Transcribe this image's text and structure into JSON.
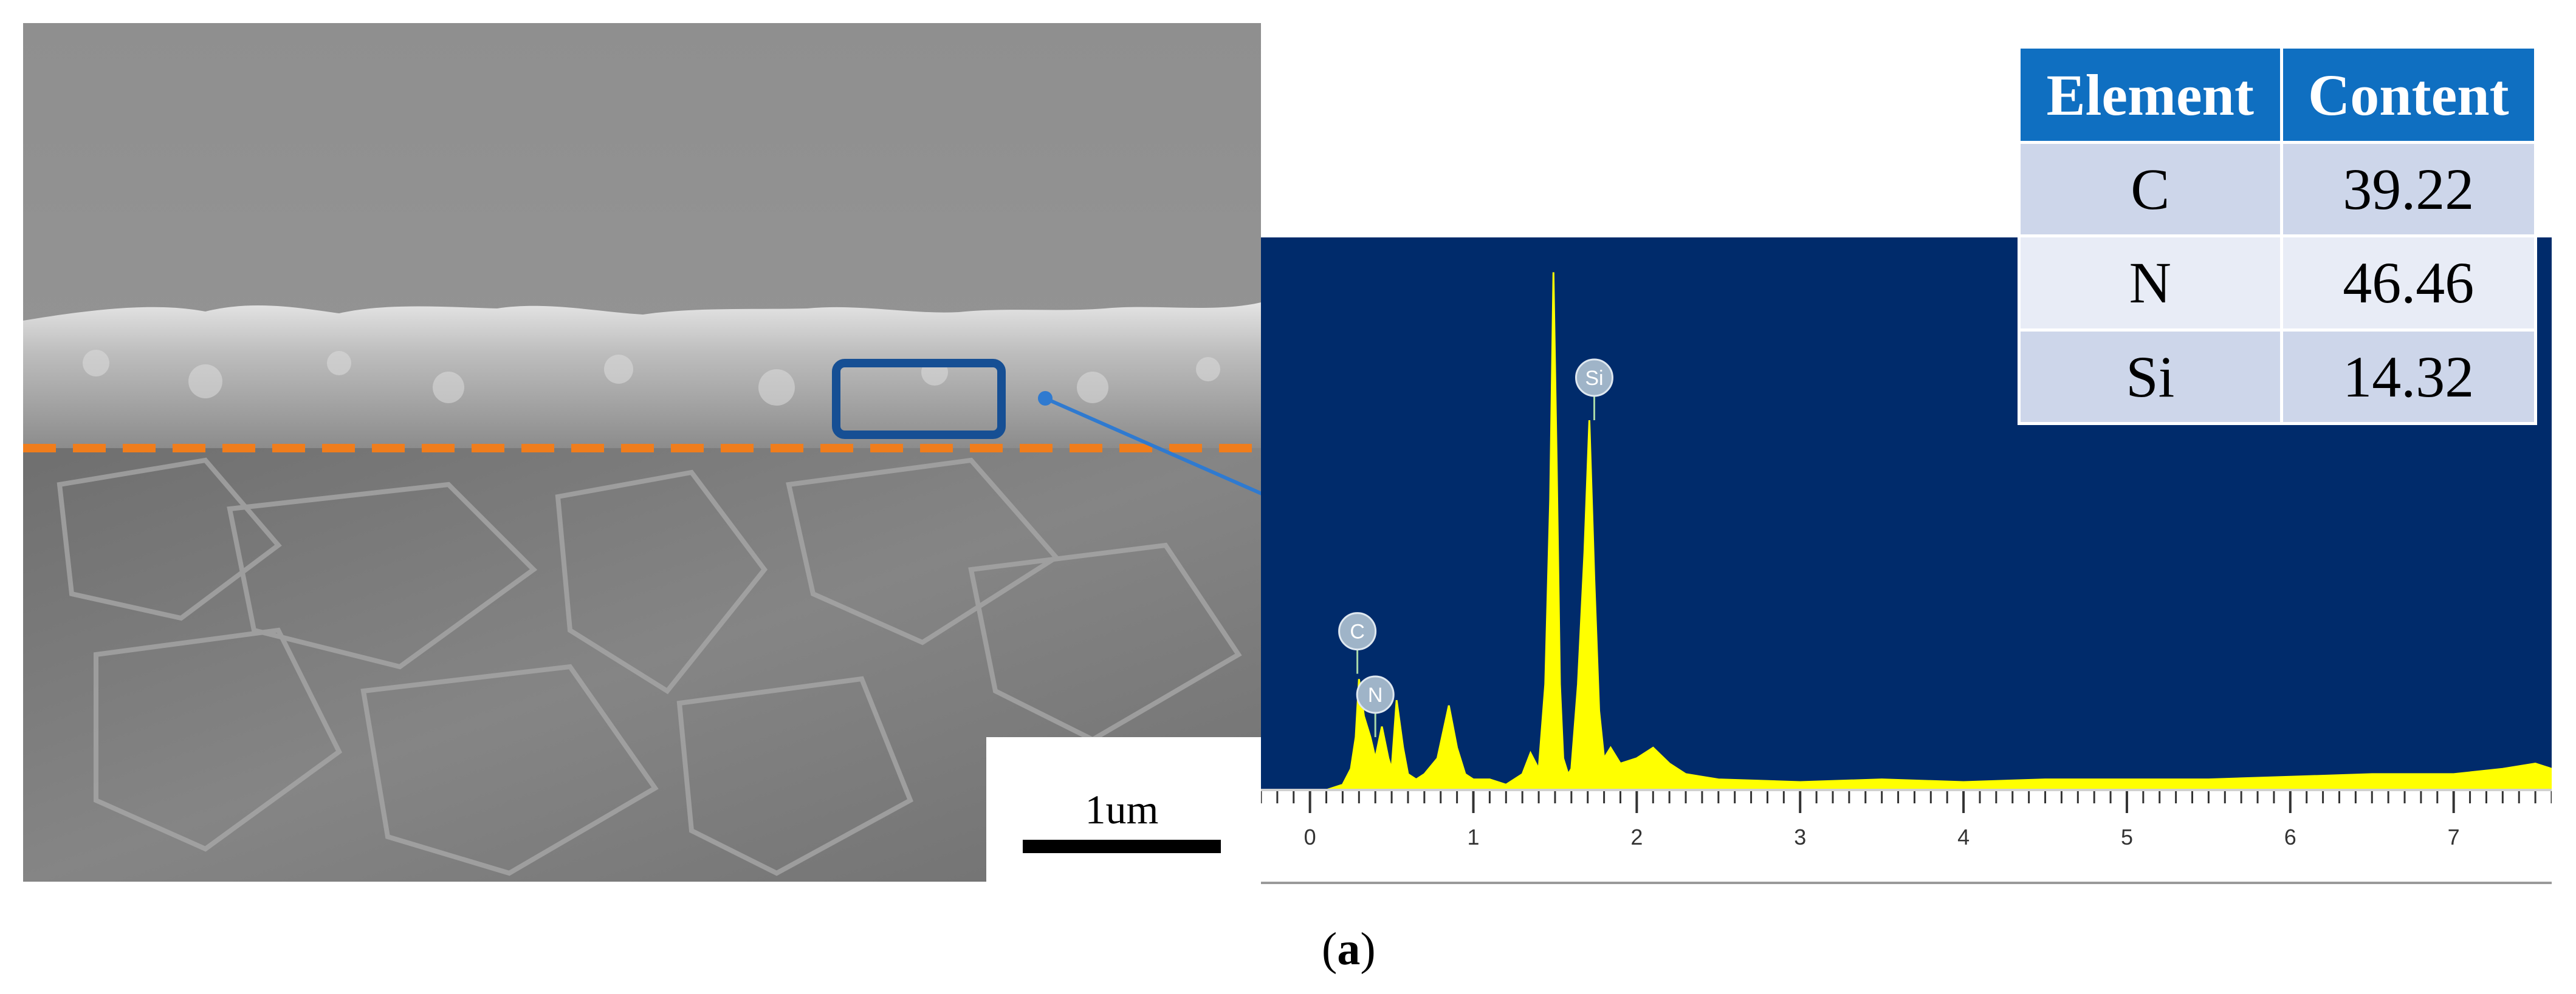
{
  "figure": {
    "caption_open": "(",
    "caption_letter": "a",
    "caption_close": ")",
    "scale_bar_label": "1um"
  },
  "table": {
    "headers": [
      "Element",
      "Content"
    ],
    "rows": [
      {
        "element": "C",
        "content": "39.22"
      },
      {
        "element": "N",
        "content": "46.46"
      },
      {
        "element": "Si",
        "content": "14.32"
      }
    ]
  },
  "colors": {
    "spectrum_background": "#002b6b",
    "spectrum_fill": "#ffff00",
    "table_header": "#0f6fc1",
    "table_row_odd": "#cdd6ea",
    "table_row_even": "#e8ecf6",
    "dashed_line": "#f07d1c",
    "roi_box": "#164f94",
    "pointer_line": "#2f7ad0"
  },
  "chart_data": {
    "type": "area",
    "title": "",
    "xlabel": "",
    "ylabel": "",
    "xlim": [
      -0.3,
      7.6
    ],
    "ylim": [
      0,
      1
    ],
    "x_ticks": [
      "0",
      "1",
      "2",
      "3",
      "4",
      "5",
      "6",
      "7"
    ],
    "series": [
      {
        "x": [
          0.1,
          0.2,
          0.25,
          0.28,
          0.3,
          0.33,
          0.37,
          0.4,
          0.44,
          0.48,
          0.5,
          0.53,
          0.57,
          0.6,
          0.65,
          0.7,
          0.78,
          0.85,
          0.9,
          0.95,
          1.0,
          1.1,
          1.2,
          1.3,
          1.35,
          1.4,
          1.44,
          1.47,
          1.49,
          1.51,
          1.53,
          1.55,
          1.58,
          1.6,
          1.64,
          1.68,
          1.71,
          1.74,
          1.77,
          1.8,
          1.84,
          1.9,
          2.0,
          2.1,
          2.2,
          2.3,
          2.5,
          3.0,
          3.5,
          4.0,
          4.5,
          5.0,
          5.5,
          6.0,
          6.5,
          7.0,
          7.3,
          7.5,
          7.6
        ],
        "y": [
          0.0,
          0.01,
          0.04,
          0.1,
          0.21,
          0.14,
          0.1,
          0.06,
          0.12,
          0.06,
          0.04,
          0.17,
          0.08,
          0.03,
          0.02,
          0.03,
          0.06,
          0.16,
          0.08,
          0.03,
          0.02,
          0.02,
          0.01,
          0.03,
          0.07,
          0.04,
          0.2,
          0.55,
          0.98,
          0.62,
          0.2,
          0.06,
          0.03,
          0.04,
          0.2,
          0.45,
          0.7,
          0.4,
          0.15,
          0.06,
          0.08,
          0.05,
          0.06,
          0.08,
          0.05,
          0.03,
          0.02,
          0.015,
          0.02,
          0.015,
          0.02,
          0.02,
          0.02,
          0.025,
          0.03,
          0.03,
          0.04,
          0.05,
          0.04
        ]
      }
    ],
    "peak_labels": [
      {
        "label": "C",
        "x": 0.29,
        "y": 0.22
      },
      {
        "label": "N",
        "x": 0.4,
        "y": 0.1
      },
      {
        "label": "Si",
        "x": 1.74,
        "y": 0.7
      }
    ]
  }
}
